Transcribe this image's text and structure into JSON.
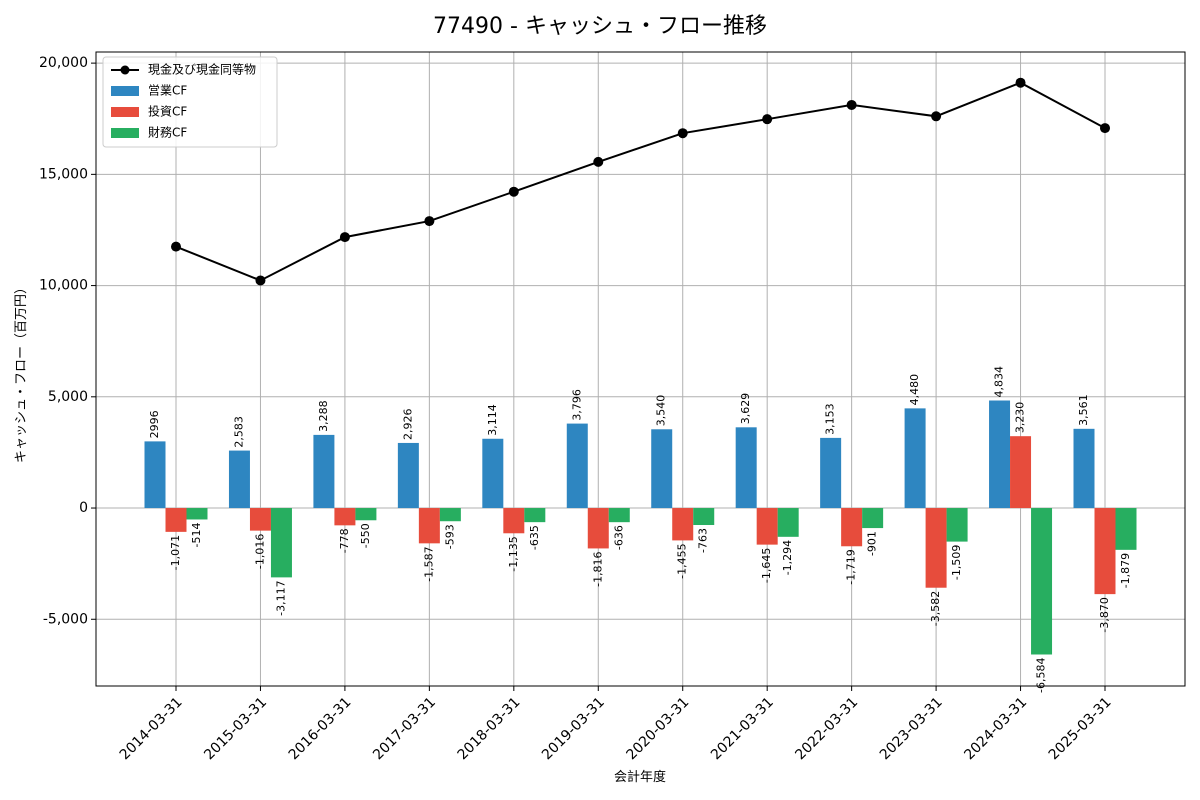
{
  "chart_data": {
    "type": "bar",
    "title": "77490 - キャッシュ・フロー推移",
    "xlabel": "会計年度",
    "ylabel": "キャッシュ・フロー（百万円）",
    "categories": [
      "2014-03-31",
      "2015-03-31",
      "2016-03-31",
      "2017-03-31",
      "2018-03-31",
      "2019-03-31",
      "2020-03-31",
      "2021-03-31",
      "2022-03-31",
      "2023-03-31",
      "2024-03-31",
      "2025-03-31"
    ],
    "ylim": [
      -8000,
      20500
    ],
    "yticks": [
      -5000,
      0,
      5000,
      10000,
      15000,
      20000
    ],
    "ytick_labels": [
      "-5,000",
      "0",
      "5,000",
      "10,000",
      "15,000",
      "20,000"
    ],
    "grid": true,
    "legend_position": "top-left",
    "line_series": {
      "name": "現金及び現金同等物",
      "color": "#000000",
      "values": [
        11750,
        10230,
        12180,
        12900,
        14220,
        15560,
        16850,
        17480,
        18120,
        17610,
        19120,
        17080
      ]
    },
    "series": [
      {
        "name": "営業CF",
        "color": "#2e86c1",
        "values": [
          2996,
          2583,
          3288,
          2926,
          3114,
          3796,
          3540,
          3629,
          3153,
          4480,
          4834,
          3561
        ],
        "labels": [
          "2996",
          "2,583",
          "3,288",
          "2,926",
          "3,114",
          "3,796",
          "3,540",
          "3,629",
          "3,153",
          "4,480",
          "4,834",
          "3,561"
        ]
      },
      {
        "name": "投資CF",
        "color": "#e74c3c",
        "values": [
          -1071,
          -1016,
          -778,
          -1587,
          -1135,
          -1816,
          -1455,
          -1645,
          -1719,
          -3582,
          3230,
          -3870
        ],
        "labels": [
          "-1,071",
          "-1,016",
          "-778",
          "-1,587",
          "-1,135",
          "-1,816",
          "-1,455",
          "-1,645",
          "-1,719",
          "-3,582",
          "3,230",
          "-3,870"
        ]
      },
      {
        "name": "財務CF",
        "color": "#27ae60",
        "values": [
          -514,
          -3117,
          -550,
          -593,
          -635,
          -636,
          -763,
          -1294,
          -901,
          -1509,
          -6584,
          -1879
        ],
        "labels": [
          "-514",
          "-3,117",
          "-550",
          "-593",
          "-635",
          "-636",
          "-763",
          "-1,294",
          "-901",
          "-1,509",
          "-6,584",
          "-1,879"
        ]
      }
    ]
  }
}
